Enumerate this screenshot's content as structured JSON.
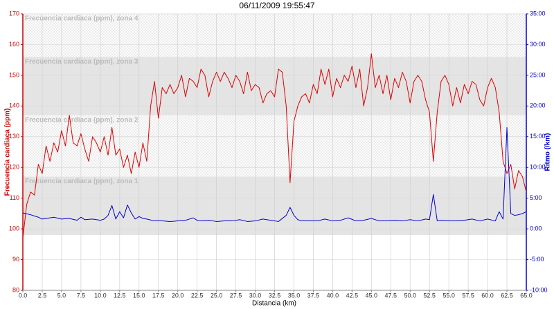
{
  "chart_data": {
    "type": "line",
    "title": "06/11/2009 19:55:47",
    "x_label": "Distancia (km)",
    "y_label": "Frecuencia cardiaca (ppm)",
    "y2_label": "Ritmo (/km)",
    "xlim": [
      0,
      65
    ],
    "xticks": [
      {
        "value": 0,
        "label": "0.0"
      },
      2.5,
      {
        "value": 5,
        "label": "5.0"
      },
      7.5,
      {
        "value": 10,
        "label": "10.0"
      },
      12.5,
      {
        "value": 15,
        "label": "15.0"
      },
      17.5,
      {
        "value": 20,
        "label": "20.0"
      },
      22.5,
      {
        "value": 25,
        "label": "25.0"
      },
      27.5,
      {
        "value": 30,
        "label": "30.0"
      },
      32.5,
      {
        "value": 35,
        "label": "35.0"
      },
      37.5,
      {
        "value": 40,
        "label": "40.0"
      },
      42.5,
      {
        "value": 45,
        "label": "45.0"
      },
      47.5,
      {
        "value": 50,
        "label": "50.0"
      },
      52.5,
      {
        "value": 55,
        "label": "55.0"
      },
      57.5,
      {
        "value": 60,
        "label": "60.0"
      },
      62.5,
      {
        "value": 65,
        "label": "65.0"
      }
    ],
    "ylim": [
      80,
      170
    ],
    "yticks": [
      80,
      90,
      100,
      110,
      120,
      130,
      140,
      150,
      160,
      170
    ],
    "y2lim": [
      -10,
      35
    ],
    "y2ticks": [
      {
        "value": -10,
        "label": "-10:00"
      },
      {
        "value": -5,
        "label": "-5:00"
      },
      {
        "value": 0,
        "label": "0:00"
      },
      {
        "value": 5,
        "label": "5:00"
      },
      {
        "value": 10,
        "label": "10:00"
      },
      {
        "value": 15,
        "label": "15:00"
      },
      {
        "value": 20,
        "label": "20:00"
      },
      {
        "value": 25,
        "label": "25:00"
      },
      {
        "value": 30,
        "label": "30:00"
      },
      {
        "value": 35,
        "label": "35:00"
      }
    ],
    "grid": true,
    "zones": [
      {
        "name": "Frecuencia cardiaca (ppm), zona 4",
        "from": 156,
        "to": 170,
        "fill": "hatch"
      },
      {
        "name": "Frecuencia cardiaca (ppm), zona 3",
        "from": 137,
        "to": 156,
        "fill": "#e4e4e4"
      },
      {
        "name": "Frecuencia cardiaca (ppm), zona 2",
        "from": 117,
        "to": 137,
        "fill": "hatch"
      },
      {
        "name": "Frecuencia cardiaca (ppm), zona 1",
        "from": 98,
        "to": 117,
        "fill": "#e4e4e4"
      }
    ],
    "series": [
      {
        "color": "#e00000",
        "axis": "y",
        "x": [
          0,
          0.5,
          1,
          1.5,
          2,
          2.5,
          3,
          3.5,
          4,
          4.5,
          5,
          5.5,
          6,
          6.5,
          7,
          7.5,
          8,
          8.5,
          9,
          9.5,
          10,
          10.5,
          11,
          11.5,
          12,
          12.5,
          13,
          13.5,
          14,
          14.5,
          15,
          15.5,
          16,
          16.5,
          17,
          17.5,
          18,
          18.5,
          19,
          19.5,
          20,
          20.5,
          21,
          21.5,
          22,
          22.5,
          23,
          23.5,
          24,
          24.5,
          25,
          25.5,
          26,
          26.5,
          27,
          27.5,
          28,
          28.5,
          29,
          29.5,
          30,
          30.5,
          31,
          31.5,
          32,
          32.5,
          33,
          33.5,
          34,
          34.5,
          35,
          35.5,
          36,
          36.5,
          37,
          37.5,
          38,
          38.5,
          39,
          39.5,
          40,
          40.5,
          41,
          41.5,
          42,
          42.5,
          43,
          43.5,
          44,
          44.5,
          45,
          45.5,
          46,
          46.5,
          47,
          47.5,
          48,
          48.5,
          49,
          49.5,
          50,
          50.5,
          51,
          51.5,
          52,
          52.5,
          53,
          53.5,
          54,
          54.5,
          55,
          55.5,
          56,
          56.5,
          57,
          57.5,
          58,
          58.5,
          59,
          59.5,
          60,
          60.5,
          61,
          61.5,
          62,
          62.5,
          63,
          63.5,
          64,
          64.5,
          65
        ],
        "values": [
          97,
          108,
          112,
          111,
          121,
          118,
          127,
          122,
          128,
          125,
          132,
          127,
          137,
          128,
          127,
          131,
          126,
          122,
          130,
          128,
          125,
          130,
          124,
          133,
          124,
          126,
          120,
          124,
          118,
          125,
          120,
          128,
          122,
          140,
          148,
          136,
          146,
          144,
          147,
          144,
          146,
          150,
          143,
          149,
          148,
          146,
          152,
          150,
          143,
          148,
          151,
          148,
          151,
          149,
          146,
          150,
          148,
          144,
          151,
          145,
          147,
          146,
          141,
          144,
          145,
          143,
          152,
          151,
          140,
          115,
          135,
          140,
          143,
          144,
          141,
          147,
          144,
          152,
          147,
          152,
          143,
          149,
          146,
          150,
          148,
          153,
          146,
          152,
          140,
          146,
          157,
          146,
          150,
          144,
          150,
          142,
          149,
          146,
          151,
          148,
          141,
          148,
          150,
          148,
          142,
          138,
          122,
          138,
          148,
          150,
          147,
          140,
          146,
          141,
          147,
          144,
          148,
          147,
          142,
          140,
          146,
          149,
          146,
          138,
          122,
          118,
          121,
          113,
          119,
          117,
          112
        ]
      },
      {
        "color": "#0000cc",
        "axis": "y2",
        "x": [
          0,
          1,
          2,
          2.5,
          3,
          4,
          5,
          6,
          7,
          7.5,
          8,
          9,
          10,
          10.5,
          11,
          11.5,
          12,
          12.5,
          13,
          13.5,
          14,
          14.5,
          15,
          15.5,
          16,
          17,
          18,
          19,
          20,
          21,
          22,
          22.5,
          23,
          24,
          25,
          26,
          27,
          28,
          29,
          30,
          31,
          32,
          33,
          34,
          34.5,
          35,
          35.5,
          36,
          37,
          38,
          39,
          40,
          41,
          42,
          43,
          44,
          45,
          46,
          47,
          48,
          49,
          50,
          51,
          52,
          52.5,
          53,
          53.5,
          54,
          55,
          56,
          57,
          58,
          59,
          60,
          61,
          61.5,
          62,
          62.5,
          63,
          63.5,
          64,
          64.5,
          65
        ],
        "values": [
          2.6,
          2.3,
          1.9,
          1.6,
          1.7,
          1.9,
          1.6,
          1.7,
          1.4,
          1.9,
          1.5,
          1.6,
          1.4,
          1.6,
          2.2,
          3.8,
          1.6,
          2.8,
          1.8,
          3.9,
          2.6,
          1.6,
          2.0,
          1.7,
          1.6,
          1.3,
          1.3,
          1.2,
          1.3,
          1.4,
          1.8,
          1.4,
          1.3,
          1.4,
          1.2,
          1.3,
          1.3,
          1.5,
          1.2,
          1.3,
          1.6,
          1.4,
          1.2,
          2.2,
          3.5,
          2.2,
          1.5,
          1.3,
          1.3,
          1.3,
          1.6,
          1.3,
          1.4,
          1.8,
          1.3,
          1.4,
          1.7,
          1.3,
          1.3,
          1.4,
          1.3,
          1.5,
          1.3,
          1.6,
          1.5,
          5.6,
          1.3,
          1.4,
          1.3,
          1.3,
          1.4,
          1.6,
          1.3,
          1.6,
          1.3,
          2.8,
          1.6,
          16.5,
          2.5,
          2.2,
          2.3,
          2.5,
          2.8
        ]
      }
    ]
  }
}
